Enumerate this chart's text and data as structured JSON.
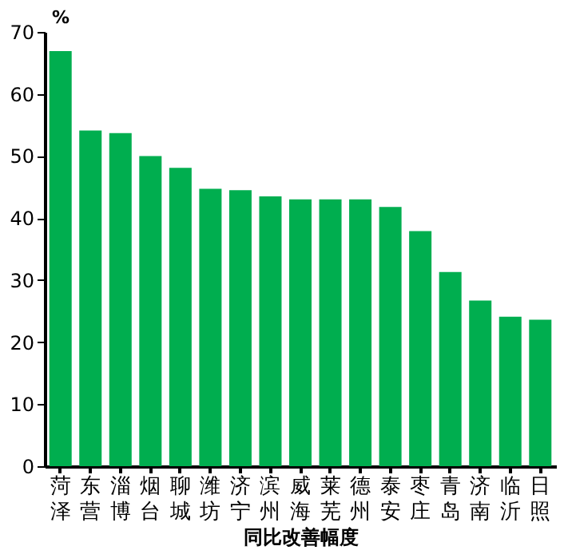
{
  "chart_data": {
    "type": "bar",
    "categories": [
      "菏泽",
      "东营",
      "淄博",
      "烟台",
      "聊城",
      "潍坊",
      "济宁",
      "滨州",
      "威海",
      "莱芜",
      "德州",
      "泰安",
      "枣庄",
      "青岛",
      "济南",
      "临沂",
      "日照"
    ],
    "values": [
      66.9,
      54.1,
      53.7,
      50.0,
      48.1,
      44.7,
      44.5,
      43.5,
      43.0,
      43.0,
      43.0,
      41.8,
      37.9,
      31.3,
      26.7,
      24.1,
      23.6
    ],
    "color": "#00ae4f",
    "xlabel": "同比改善幅度",
    "ylabel": "%",
    "ylim": [
      0,
      70
    ],
    "yticks": [
      0,
      10,
      20,
      30,
      40,
      50,
      60,
      70
    ],
    "grid": false
  }
}
